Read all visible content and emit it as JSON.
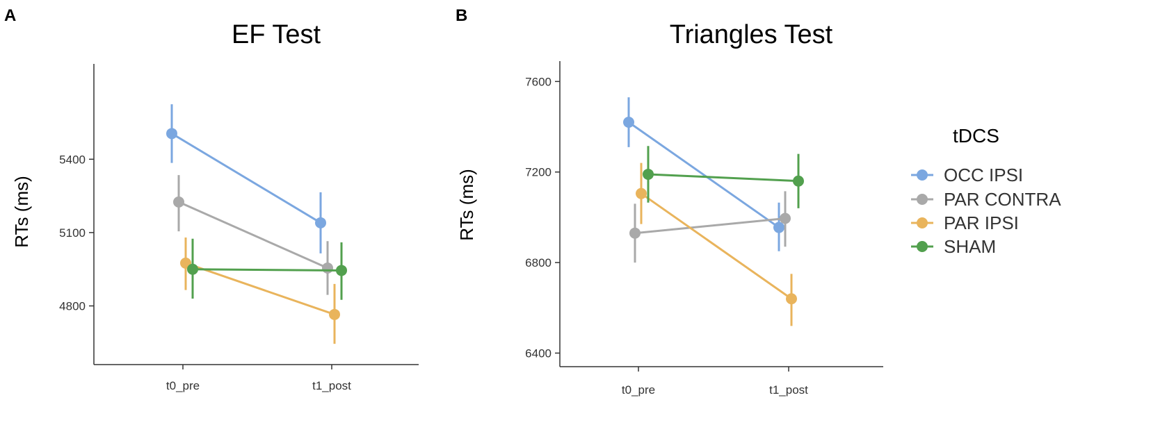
{
  "figure": {
    "panels": [
      "A",
      "B"
    ]
  },
  "legend": {
    "title": "tDCS",
    "entries": [
      "OCC IPSI",
      "PAR CONTRA",
      "PAR IPSI",
      "SHAM"
    ],
    "colors": [
      "#7ba7e0",
      "#a9a9a9",
      "#e9b45c",
      "#52a04e"
    ]
  },
  "chart_data": [
    {
      "type": "line",
      "panel": "A",
      "title": "EF Test",
      "xlabel": "",
      "ylabel": "RTs (ms)",
      "categories": [
        "t0_pre",
        "t1_post"
      ],
      "yticks": [
        4800,
        5100,
        5400
      ],
      "ytick_labels": [
        "4800",
        "5100",
        "5400"
      ],
      "ylim": [
        4560,
        5790
      ],
      "series": [
        {
          "name": "OCC IPSI",
          "color": "#7ba7e0",
          "values": [
            5505,
            5140
          ],
          "ci_low": [
            5385,
            5015
          ],
          "ci_high": [
            5625,
            5265
          ]
        },
        {
          "name": "PAR CONTRA",
          "color": "#a9a9a9",
          "values": [
            5225,
            4955
          ],
          "ci_low": [
            5105,
            4845
          ],
          "ci_high": [
            5335,
            5065
          ]
        },
        {
          "name": "PAR IPSI",
          "color": "#e9b45c",
          "values": [
            4975,
            4765
          ],
          "ci_low": [
            4865,
            4645
          ],
          "ci_high": [
            5080,
            4890
          ]
        },
        {
          "name": "SHAM",
          "color": "#52a04e",
          "values": [
            4950,
            4945
          ],
          "ci_low": [
            4830,
            4825
          ],
          "ci_high": [
            5075,
            5060
          ]
        }
      ]
    },
    {
      "type": "line",
      "panel": "B",
      "title": "Triangles Test",
      "xlabel": "",
      "ylabel": "RTs (ms)",
      "categories": [
        "t0_pre",
        "t1_post"
      ],
      "yticks": [
        6400,
        6800,
        7200,
        7600
      ],
      "ytick_labels": [
        "6400",
        "6800",
        "7200",
        "7600"
      ],
      "ylim": [
        6340,
        7690
      ],
      "series": [
        {
          "name": "OCC IPSI",
          "color": "#7ba7e0",
          "values": [
            7420,
            6955
          ],
          "ci_low": [
            7310,
            6850
          ],
          "ci_high": [
            7530,
            7065
          ]
        },
        {
          "name": "PAR CONTRA",
          "color": "#a9a9a9",
          "values": [
            6930,
            6995
          ],
          "ci_low": [
            6800,
            6870
          ],
          "ci_high": [
            7060,
            7115
          ]
        },
        {
          "name": "PAR IPSI",
          "color": "#e9b45c",
          "values": [
            7105,
            6640
          ],
          "ci_low": [
            6970,
            6520
          ],
          "ci_high": [
            7240,
            6750
          ]
        },
        {
          "name": "SHAM",
          "color": "#52a04e",
          "values": [
            7190,
            7160
          ],
          "ci_low": [
            7065,
            7040
          ],
          "ci_high": [
            7315,
            7280
          ]
        }
      ]
    }
  ]
}
